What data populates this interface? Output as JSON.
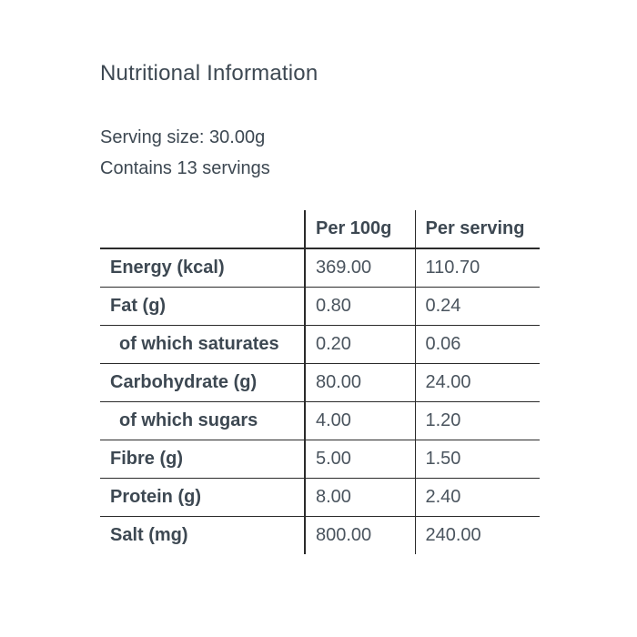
{
  "page": {
    "title": "Nutritional Information",
    "serving_size_line": "Serving size: 30.00g",
    "servings_line": "Contains 13 servings"
  },
  "table": {
    "columns": [
      "",
      "Per 100g",
      "Per serving"
    ],
    "rows": [
      {
        "label": "Energy (kcal)",
        "per_100g": "369.00",
        "per_serving": "110.70",
        "indent": false
      },
      {
        "label": "Fat (g)",
        "per_100g": "0.80",
        "per_serving": "0.24",
        "indent": false
      },
      {
        "label": "of which saturates",
        "per_100g": "0.20",
        "per_serving": "0.06",
        "indent": true
      },
      {
        "label": "Carbohydrate (g)",
        "per_100g": "80.00",
        "per_serving": "24.00",
        "indent": false
      },
      {
        "label": "of which sugars",
        "per_100g": "4.00",
        "per_serving": "1.20",
        "indent": true
      },
      {
        "label": "Fibre (g)",
        "per_100g": "5.00",
        "per_serving": "1.50",
        "indent": false
      },
      {
        "label": "Protein (g)",
        "per_100g": "8.00",
        "per_serving": "2.40",
        "indent": false
      },
      {
        "label": "Salt (mg)",
        "per_100g": "800.00",
        "per_serving": "240.00",
        "indent": false
      }
    ]
  },
  "colors": {
    "text": "#3d4852",
    "value_text": "#4a545e",
    "border": "#2b2b2b",
    "background": "#ffffff"
  }
}
